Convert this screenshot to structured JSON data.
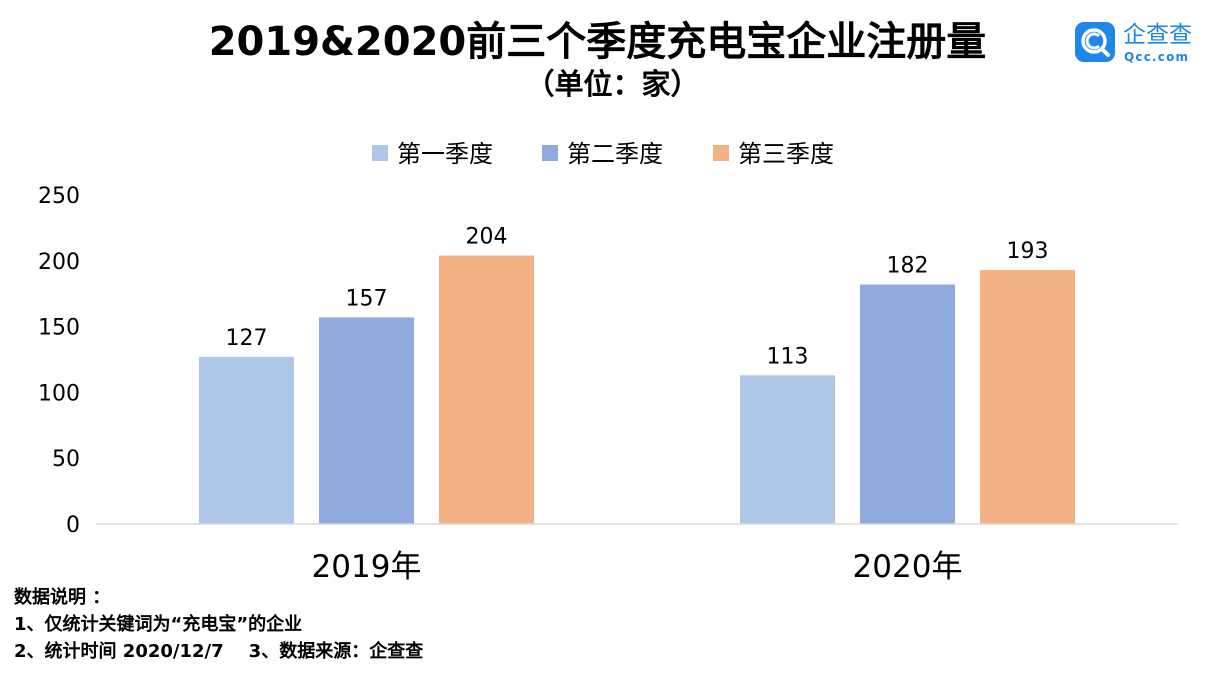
{
  "title": "2019&2020前三个季度充电宝企业注册量",
  "subtitle": "（单位：家）",
  "logo": {
    "brand": "企查查",
    "brand_sub": "Qcc.com",
    "icon": "qcc-logo-icon",
    "color": "#1f86ea"
  },
  "chart_data": {
    "type": "bar",
    "categories": [
      "2019年",
      "2020年"
    ],
    "series": [
      {
        "name": "第一季度",
        "values": [
          127,
          113
        ],
        "color": "#aec7e8"
      },
      {
        "name": "第二季度",
        "values": [
          157,
          182
        ],
        "color": "#8faadc"
      },
      {
        "name": "第三季度",
        "values": [
          204,
          193
        ],
        "color": "#f4b183"
      }
    ],
    "yticks": [
      "0",
      "50",
      "100",
      "150",
      "200",
      "250"
    ],
    "ylim": [
      0,
      250
    ],
    "grid": false,
    "legend": "top-center",
    "data_labels": true
  },
  "notes": {
    "heading": "数据说明 ：",
    "line1": "1、仅统计关键词为“充电宝”的企业",
    "line2": "2、统计时间 2020/12/7    3、数据来源：企查查"
  }
}
